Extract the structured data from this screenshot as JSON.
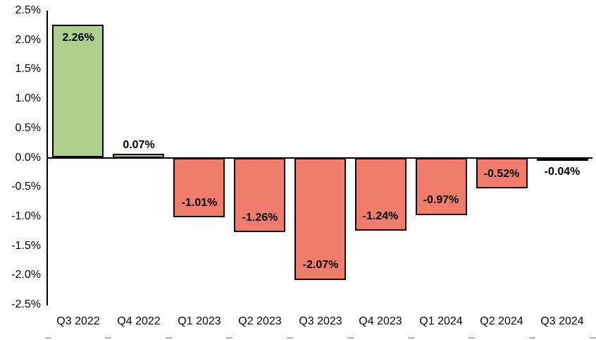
{
  "chart_data": {
    "type": "bar",
    "title": "",
    "xlabel": "",
    "ylabel": "",
    "categories": [
      "Q3 2022",
      "Q4 2022",
      "Q1 2023",
      "Q2 2023",
      "Q3 2023",
      "Q4 2023",
      "Q1 2024",
      "Q2 2024",
      "Q3 2024"
    ],
    "values": [
      2.26,
      0.07,
      -1.01,
      -1.26,
      -2.07,
      -1.24,
      -0.97,
      -0.52,
      -0.04
    ],
    "data_labels": [
      "2.26%",
      "0.07%",
      "-1.01%",
      "-1.26%",
      "-2.07%",
      "-1.24%",
      "-0.97%",
      "-0.52%",
      "-0.04%"
    ],
    "ylim": [
      -2.5,
      2.5
    ],
    "y_ticks": {
      "values": [
        2.5,
        2.0,
        1.5,
        1.0,
        0.5,
        0.0,
        -0.5,
        -1.0,
        -1.5,
        -2.0,
        -2.5
      ],
      "labels": [
        "2.5%",
        "2.0%",
        "1.5%",
        "1.0%",
        "0.5%",
        "0.0%",
        "-0.5%",
        "-1.0%",
        "-1.5%",
        "-2.0%",
        "-2.5%"
      ]
    },
    "grid": false,
    "legend": "none",
    "colors": {
      "positive_bar": "#AECE8D",
      "negative_bar": "#F07C6C",
      "bar_border": "#000000",
      "axis_line": "#000000",
      "label_text": "#000000",
      "minor_tick": "#B0B0B0"
    }
  }
}
